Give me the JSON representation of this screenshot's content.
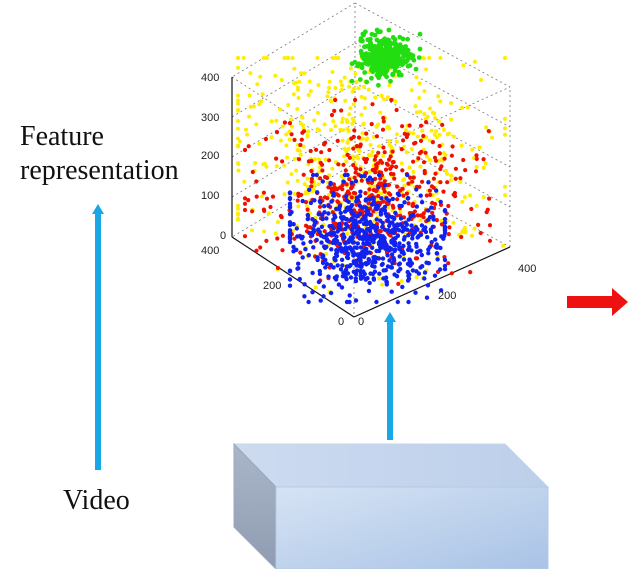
{
  "labels": {
    "feature_line1": "Feature",
    "feature_line2": "representation",
    "video": "Video"
  },
  "colors": {
    "up_arrow": "#1aa7e6",
    "right_arrow": "#ee1111",
    "cluster_green": "#22dd11",
    "cluster_yellow": "#ffee00",
    "cluster_red": "#ee1100",
    "cluster_blue": "#1122ee"
  },
  "icons": {
    "up_arrow_left": "arrow-up-icon",
    "up_arrow_center": "arrow-up-icon",
    "right_arrow": "arrow-right-icon",
    "video_block": "cuboid-icon"
  },
  "plot": {
    "z_ticks": [
      "400",
      "300",
      "200",
      "100",
      "0"
    ],
    "x_ticks": [
      "400",
      "200",
      "0"
    ],
    "y_ticks": [
      "0",
      "200",
      "400"
    ]
  }
}
